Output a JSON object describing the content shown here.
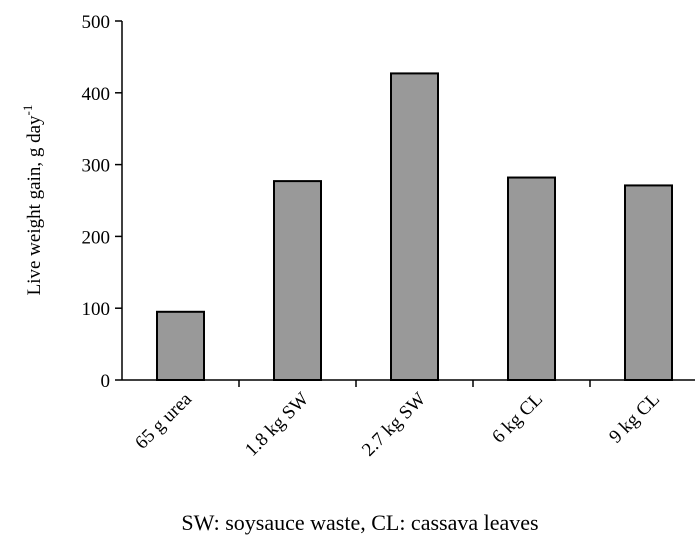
{
  "chart_data": {
    "type": "bar",
    "y_label": "Live weight gain, g day",
    "y_label_sup": "-1",
    "categories": [
      "65 g urea",
      "1.8 kg SW",
      "2.7 kg SW",
      "6 kg CL",
      "9 kg CL"
    ],
    "values": [
      95,
      277,
      427,
      282,
      271
    ],
    "color": "#999999",
    "ylim": [
      0,
      500
    ],
    "yticks": [
      0,
      100,
      200,
      300,
      400,
      500
    ],
    "grid": false,
    "footnote": "SW: soysauce waste, CL: cassava leaves"
  }
}
